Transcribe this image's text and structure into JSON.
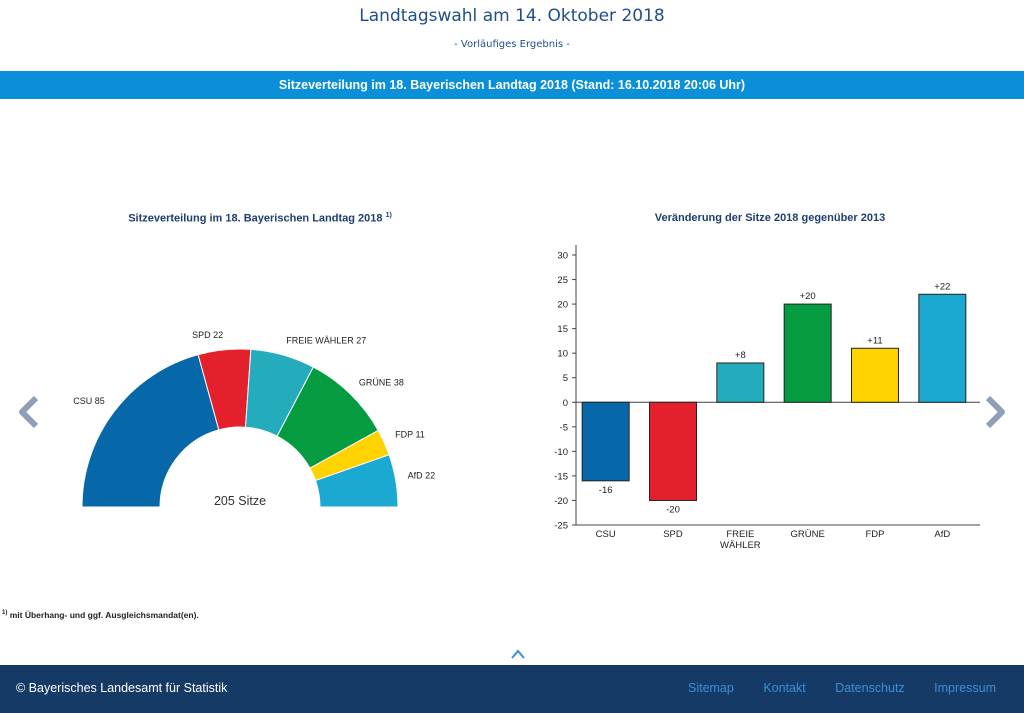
{
  "header": {
    "title": "Landtagswahl am 14. Oktober 2018",
    "subtitle": "- Vorläufiges Ergebnis -",
    "banner": "Sitzeverteilung im 18. Bayerischen Landtag 2018 (Stand: 16.10.2018 20:06 Uhr)"
  },
  "chart_data": [
    {
      "type": "pie",
      "variant": "semicircle-donut",
      "title": "Sitzeverteilung im 18. Bayerischen Landtag 2018",
      "title_note": "1)",
      "center_label": "205 Sitze",
      "categories": [
        "CSU",
        "SPD",
        "FREIE WÄHLER",
        "GRÜNE",
        "FDP",
        "AfD"
      ],
      "values": [
        85,
        22,
        27,
        38,
        11,
        22
      ],
      "colors": [
        "#0667a9",
        "#e3202b",
        "#24acbd",
        "#049b41",
        "#ffd200",
        "#1ba9d2"
      ]
    },
    {
      "type": "bar",
      "title": "Veränderung der Sitze 2018 gegenüber 2013",
      "categories": [
        "CSU",
        "SPD",
        "FREIE WÄHLER",
        "GRÜNE",
        "FDP",
        "AfD"
      ],
      "values": [
        -16,
        -20,
        8,
        20,
        11,
        22
      ],
      "data_labels": [
        "-16",
        "-20",
        "+8",
        "+20",
        "+11",
        "+22"
      ],
      "colors": [
        "#0667a9",
        "#e3202b",
        "#24acbd",
        "#049b41",
        "#ffd200",
        "#1ba9d2"
      ],
      "ylim": [
        -25,
        30
      ],
      "yticks": [
        30,
        25,
        20,
        15,
        10,
        5,
        0,
        -5,
        -10,
        -15,
        -20,
        -25
      ],
      "grid": false,
      "legend": "none"
    }
  ],
  "footnote": "mit Überhang- und ggf. Ausgleichsmandat(en).",
  "footnote_mark": "1)",
  "footer": {
    "copyright": "© Bayerisches Landesamt für Statistik",
    "links": [
      "Sitemap",
      "Kontakt",
      "Datenschutz",
      "Impressum"
    ]
  },
  "icons": {
    "prev": "chevron-left-icon",
    "next": "chevron-right-icon",
    "top": "chevron-up-icon"
  }
}
